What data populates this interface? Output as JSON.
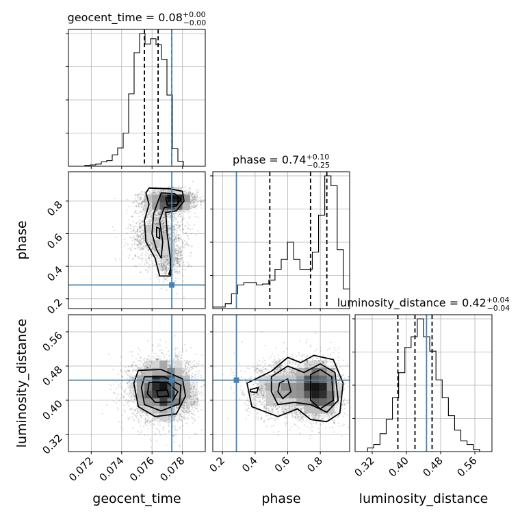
{
  "chart_data": {
    "type": "corner",
    "truth_color": "#4682b4",
    "params": [
      {
        "key": "geocent_time",
        "axis_label": "geocent_time",
        "title_name": "geocent_time",
        "median": "0.08",
        "plus": "+0.00",
        "minus": "−0.00",
        "range": [
          0.0705,
          0.0795
        ],
        "ticks": [
          0.072,
          0.074,
          0.076,
          0.078
        ],
        "tick_labels": [
          "0.072",
          "0.074",
          "0.076",
          "0.078"
        ],
        "truth": 0.0773,
        "quantiles": [
          0.0755,
          0.0764,
          0.0773
        ],
        "hist": [
          0,
          0,
          0,
          0.2,
          0.3,
          0.5,
          1,
          1.3,
          2.6,
          4.2,
          7.6,
          16.6,
          26,
          30.4,
          28,
          29.2,
          27.8,
          24.5,
          16.3,
          4,
          1.1,
          0,
          0,
          0,
          0
        ]
      },
      {
        "key": "phase",
        "axis_label": "phase",
        "title_name": "phase",
        "median": "0.74",
        "plus": "+0.10",
        "minus": "−0.25",
        "range": [
          0.14,
          0.98
        ],
        "ticks": [
          0.2,
          0.4,
          0.6,
          0.8
        ],
        "tick_labels": [
          "0.2",
          "0.4",
          "0.6",
          "0.8"
        ],
        "truth": 0.285,
        "quantiles": [
          0.49,
          0.74,
          0.84
        ],
        "hist": [
          0.3,
          0.3,
          1,
          3,
          4.8,
          5.3,
          5.3,
          4.8,
          5,
          5.8,
          8,
          10,
          13.5,
          10,
          8,
          8,
          11.5,
          19,
          27,
          25,
          12,
          4
        ]
      },
      {
        "key": "luminosity_distance",
        "axis_label": "luminosity_distance",
        "title_name": "luminosity_distance",
        "median": "0.42",
        "plus": "+0.04",
        "minus": "−0.04",
        "range": [
          0.28,
          0.6
        ],
        "ticks": [
          0.32,
          0.4,
          0.48,
          0.56
        ],
        "tick_labels": [
          "0.32",
          "0.40",
          "0.48",
          "0.56"
        ],
        "truth": 0.447,
        "quantiles": [
          0.38,
          0.42,
          0.46
        ],
        "hist": [
          0,
          0,
          0.5,
          1,
          2.5,
          4.5,
          7.5,
          11,
          14.5,
          16,
          18.5,
          16,
          14,
          10,
          7.5,
          5,
          3,
          1.5,
          1,
          0.3,
          0,
          0
        ]
      }
    ],
    "pairs": [
      {
        "x": "geocent_time",
        "y": "phase",
        "modes": [
          {
            "mx": 0.0772,
            "my": 0.8,
            "sx": 0.0009,
            "sy": 0.035,
            "w": 0.5
          },
          {
            "mx": 0.0763,
            "my": 0.6,
            "sx": 0.0009,
            "sy": 0.09,
            "w": 0.35
          },
          {
            "mx": 0.0771,
            "my": 0.45,
            "sx": 0.0006,
            "sy": 0.07,
            "w": 0.15
          }
        ],
        "contours": [
          [
            [
              0.0758,
              0.88
            ],
            [
              0.0772,
              0.875
            ],
            [
              0.078,
              0.86
            ],
            [
              0.0781,
              0.8
            ],
            [
              0.0776,
              0.74
            ],
            [
              0.0769,
              0.73
            ],
            [
              0.077,
              0.6
            ],
            [
              0.0772,
              0.45
            ],
            [
              0.0772,
              0.34
            ],
            [
              0.0765,
              0.34
            ],
            [
              0.0762,
              0.45
            ],
            [
              0.0756,
              0.55
            ],
            [
              0.0755,
              0.68
            ],
            [
              0.0758,
              0.78
            ],
            [
              0.0756,
              0.85
            ]
          ],
          [
            [
              0.0766,
              0.85
            ],
            [
              0.0775,
              0.845
            ],
            [
              0.0779,
              0.81
            ],
            [
              0.0776,
              0.77
            ],
            [
              0.0768,
              0.76
            ],
            [
              0.0765,
              0.68
            ],
            [
              0.0767,
              0.55
            ],
            [
              0.0766,
              0.45
            ],
            [
              0.0763,
              0.5
            ],
            [
              0.076,
              0.6
            ],
            [
              0.0761,
              0.72
            ],
            [
              0.0764,
              0.8
            ]
          ],
          [
            [
              0.0769,
              0.82
            ],
            [
              0.0777,
              0.82
            ],
            [
              0.0777,
              0.78
            ],
            [
              0.077,
              0.775
            ]
          ],
          [
            [
              0.0763,
              0.64
            ],
            [
              0.0765,
              0.63
            ],
            [
              0.0765,
              0.57
            ],
            [
              0.0763,
              0.58
            ]
          ],
          [
            [
              0.0772,
              0.38
            ],
            [
              0.0773,
              0.37
            ],
            [
              0.0773,
              0.35
            ],
            [
              0.0771,
              0.35
            ]
          ]
        ]
      },
      {
        "x": "geocent_time",
        "y": "luminosity_distance",
        "modes": [
          {
            "mx": 0.0767,
            "my": 0.425,
            "sx": 0.0011,
            "sy": 0.038,
            "w": 1
          }
        ],
        "contours": [
          [
            [
              0.0751,
              0.47
            ],
            [
              0.0766,
              0.472
            ],
            [
              0.078,
              0.45
            ],
            [
              0.0782,
              0.41
            ],
            [
              0.0776,
              0.368
            ],
            [
              0.0762,
              0.362
            ],
            [
              0.0751,
              0.385
            ],
            [
              0.0748,
              0.44
            ]
          ],
          [
            [
              0.0755,
              0.455
            ],
            [
              0.0768,
              0.455
            ],
            [
              0.0779,
              0.435
            ],
            [
              0.0778,
              0.392
            ],
            [
              0.0766,
              0.375
            ],
            [
              0.0755,
              0.39
            ],
            [
              0.0753,
              0.43
            ]
          ],
          [
            [
              0.0758,
              0.442
            ],
            [
              0.077,
              0.442
            ],
            [
              0.0777,
              0.42
            ],
            [
              0.0773,
              0.396
            ],
            [
              0.0762,
              0.395
            ],
            [
              0.0757,
              0.415
            ]
          ],
          [
            [
              0.0763,
              0.422
            ],
            [
              0.077,
              0.424
            ],
            [
              0.0771,
              0.41
            ],
            [
              0.0764,
              0.408
            ]
          ]
        ]
      },
      {
        "x": "phase",
        "y": "luminosity_distance",
        "modes": [
          {
            "mx": 0.8,
            "my": 0.425,
            "sx": 0.07,
            "sy": 0.035,
            "w": 0.55
          },
          {
            "mx": 0.58,
            "my": 0.425,
            "sx": 0.12,
            "sy": 0.035,
            "w": 0.45
          }
        ],
        "contours": [
          [
            [
              0.35,
              0.44
            ],
            [
              0.5,
              0.468
            ],
            [
              0.6,
              0.5
            ],
            [
              0.68,
              0.488
            ],
            [
              0.76,
              0.505
            ],
            [
              0.88,
              0.495
            ],
            [
              0.94,
              0.44
            ],
            [
              0.92,
              0.37
            ],
            [
              0.84,
              0.35
            ],
            [
              0.74,
              0.355
            ],
            [
              0.66,
              0.38
            ],
            [
              0.54,
              0.362
            ],
            [
              0.38,
              0.385
            ]
          ],
          [
            [
              0.5,
              0.455
            ],
            [
              0.6,
              0.48
            ],
            [
              0.7,
              0.465
            ],
            [
              0.8,
              0.485
            ],
            [
              0.89,
              0.465
            ],
            [
              0.91,
              0.4
            ],
            [
              0.84,
              0.372
            ],
            [
              0.74,
              0.39
            ],
            [
              0.64,
              0.395
            ],
            [
              0.54,
              0.39
            ],
            [
              0.5,
              0.42
            ]
          ],
          [
            [
              0.74,
              0.46
            ],
            [
              0.8,
              0.472
            ],
            [
              0.87,
              0.455
            ],
            [
              0.88,
              0.4
            ],
            [
              0.8,
              0.38
            ],
            [
              0.74,
              0.4
            ]
          ],
          [
            [
              0.55,
              0.44
            ],
            [
              0.6,
              0.45
            ],
            [
              0.62,
              0.42
            ],
            [
              0.57,
              0.404
            ],
            [
              0.54,
              0.42
            ]
          ],
          [
            [
              0.37,
              0.425
            ],
            [
              0.42,
              0.43
            ],
            [
              0.41,
              0.418
            ],
            [
              0.37,
              0.42
            ]
          ]
        ]
      }
    ]
  }
}
